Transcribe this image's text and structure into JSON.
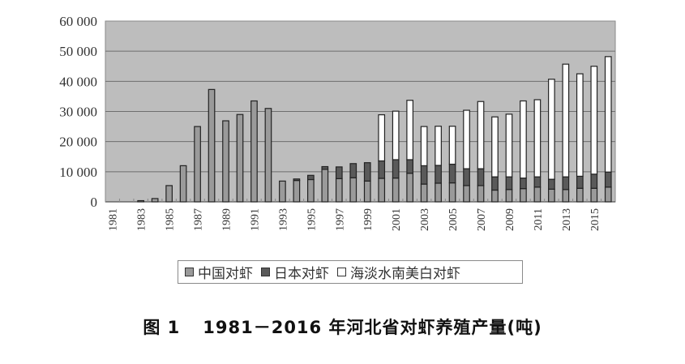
{
  "chart_data": {
    "type": "bar",
    "stacked": true,
    "title": "图 1   1981－2016 年河北省对虾养殖产量(吨)",
    "xlabel": "",
    "ylabel": "",
    "ylim": [
      0,
      60000
    ],
    "yticks": [
      "60 000",
      "50 000",
      "40 000",
      "30 000",
      "20 000",
      "10 000",
      "0"
    ],
    "ytick_values": [
      60000,
      50000,
      40000,
      30000,
      20000,
      10000,
      0
    ],
    "x_tick_labels": [
      "1981",
      "1983",
      "1985",
      "1987",
      "1989",
      "1991",
      "1993",
      "1995",
      "1997",
      "1999",
      "2001",
      "2003",
      "2005",
      "2007",
      "2009",
      "2011",
      "2013",
      "2015"
    ],
    "grid": true,
    "legend_position": "bottom",
    "categories": [
      1981,
      1982,
      1983,
      1984,
      1985,
      1986,
      1987,
      1988,
      1989,
      1990,
      1991,
      1992,
      1993,
      1994,
      1995,
      1996,
      1997,
      1998,
      1999,
      2000,
      2001,
      2002,
      2003,
      2004,
      2005,
      2006,
      2007,
      2008,
      2009,
      2010,
      2011,
      2012,
      2013,
      2014,
      2015,
      2016
    ],
    "series": [
      {
        "name": "中国对虾",
        "color": "#9a9a9a",
        "values": [
          0,
          0,
          400,
          1100,
          5400,
          12000,
          25000,
          37300,
          26900,
          29000,
          33500,
          31000,
          6900,
          7100,
          7400,
          10800,
          7700,
          8000,
          6900,
          7800,
          7900,
          9500,
          5900,
          6200,
          6300,
          5400,
          5400,
          3900,
          4100,
          4400,
          4900,
          4200,
          4100,
          4500,
          4500,
          4900
        ]
      },
      {
        "name": "日本对虾",
        "color": "#5a5a5a",
        "values": [
          0,
          0,
          0,
          0,
          0,
          0,
          0,
          0,
          0,
          0,
          0,
          0,
          0,
          500,
          1400,
          900,
          3900,
          4700,
          6100,
          5800,
          6100,
          4500,
          6100,
          5900,
          6200,
          5600,
          5600,
          4400,
          4200,
          3500,
          3400,
          3300,
          4200,
          4000,
          4700,
          5000
        ]
      },
      {
        "name": "海淡水南美白对虾",
        "color": "#ffffff",
        "values": [
          0,
          0,
          0,
          0,
          0,
          0,
          0,
          0,
          0,
          0,
          0,
          0,
          0,
          0,
          0,
          0,
          0,
          0,
          0,
          15300,
          16100,
          19700,
          13000,
          13000,
          12600,
          19400,
          22300,
          19900,
          20800,
          25600,
          25600,
          33200,
          37400,
          34000,
          35800,
          38300
        ]
      }
    ]
  },
  "legend": {
    "items": [
      {
        "label": "中国对虾",
        "color": "#9a9a9a"
      },
      {
        "label": "日本对虾",
        "color": "#5a5a5a"
      },
      {
        "label": "海淡水南美白对虾",
        "color": "#ffffff"
      }
    ]
  },
  "caption": {
    "number": "图 1",
    "text": "1981－2016 年河北省对虾养殖产量(吨)"
  },
  "style": {
    "plot_bg": "#bdbdbd",
    "grid_color": "#6e6e6e",
    "bar_outline": "#222222"
  }
}
